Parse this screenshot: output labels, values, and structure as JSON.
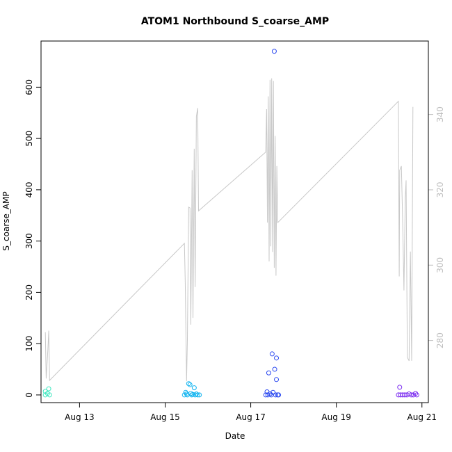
{
  "chart_data": {
    "type": "scatter",
    "title": "ATOM1 Northbound S_coarse_AMP",
    "xlabel": "Date",
    "ylabel": "S_coarse_AMP",
    "x_ticks": [
      "Aug 13",
      "Aug 15",
      "Aug 17",
      "Aug 19",
      "Aug 21"
    ],
    "y_ticks": [
      0,
      100,
      200,
      300,
      400,
      500,
      600
    ],
    "y2_ticks": [
      280,
      300,
      320,
      340
    ],
    "ylim": [
      -15,
      690
    ],
    "y2lim": [
      263.5,
      359.5
    ],
    "xlim_days": [
      12.1,
      21.15
    ],
    "grid": false,
    "legend": "none",
    "colors": {
      "line": "#c8c8c8",
      "right_axis": "#bdbdbd"
    },
    "series": [
      {
        "color": "#3ee8c0",
        "points": [
          [
            12.2,
            0
          ],
          [
            12.2,
            7
          ],
          [
            12.25,
            3
          ],
          [
            12.28,
            12
          ],
          [
            12.3,
            0
          ]
        ]
      },
      {
        "color": "#12b4f0",
        "points": [
          [
            15.45,
            0
          ],
          [
            15.48,
            5
          ],
          [
            15.5,
            2
          ],
          [
            15.52,
            0
          ],
          [
            15.55,
            22
          ],
          [
            15.58,
            20
          ],
          [
            15.6,
            3
          ],
          [
            15.62,
            0
          ],
          [
            15.65,
            1
          ],
          [
            15.68,
            14
          ],
          [
            15.7,
            0
          ],
          [
            15.73,
            2
          ],
          [
            15.76,
            0
          ],
          [
            15.8,
            0
          ]
        ]
      },
      {
        "color": "#2a48f0",
        "points": [
          [
            17.35,
            0
          ],
          [
            17.38,
            6
          ],
          [
            17.4,
            0
          ],
          [
            17.42,
            43
          ],
          [
            17.45,
            2
          ],
          [
            17.48,
            0
          ],
          [
            17.5,
            80
          ],
          [
            17.52,
            5
          ],
          [
            17.55,
            670
          ],
          [
            17.56,
            50
          ],
          [
            17.58,
            0
          ],
          [
            17.6,
            72
          ],
          [
            17.6,
            30
          ],
          [
            17.63,
            0
          ],
          [
            17.65,
            0
          ]
        ]
      },
      {
        "color": "#7a2af0",
        "points": [
          [
            20.45,
            0
          ],
          [
            20.48,
            15
          ],
          [
            20.5,
            0
          ],
          [
            20.55,
            0
          ],
          [
            20.6,
            0
          ],
          [
            20.65,
            0
          ],
          [
            20.7,
            2
          ],
          [
            20.75,
            0
          ],
          [
            20.8,
            0
          ],
          [
            20.85,
            3
          ],
          [
            20.88,
            0
          ]
        ]
      }
    ],
    "line_series": {
      "axis": "right",
      "points": [
        [
          12.2,
          282.2
        ],
        [
          12.22,
          269.9
        ],
        [
          12.26,
          277.3
        ],
        [
          12.28,
          282.6
        ],
        [
          12.3,
          269.4
        ],
        [
          15.45,
          305.8
        ],
        [
          15.47,
          295.4
        ],
        [
          15.5,
          269.2
        ],
        [
          15.52,
          280.3
        ],
        [
          15.55,
          315.4
        ],
        [
          15.58,
          315.2
        ],
        [
          15.6,
          284.2
        ],
        [
          15.63,
          325.2
        ],
        [
          15.65,
          286.0
        ],
        [
          15.68,
          330.9
        ],
        [
          15.7,
          294.2
        ],
        [
          15.73,
          339.5
        ],
        [
          15.76,
          341.7
        ],
        [
          15.78,
          314.4
        ],
        [
          17.35,
          330.0
        ],
        [
          17.37,
          341.4
        ],
        [
          17.39,
          311.3
        ],
        [
          17.41,
          344.8
        ],
        [
          17.43,
          301.0
        ],
        [
          17.45,
          349.2
        ],
        [
          17.47,
          305.0
        ],
        [
          17.49,
          349.6
        ],
        [
          17.51,
          303.5
        ],
        [
          17.53,
          348.9
        ],
        [
          17.55,
          299.3
        ],
        [
          17.57,
          334.3
        ],
        [
          17.59,
          297.2
        ],
        [
          17.61,
          326.3
        ],
        [
          17.63,
          311.3
        ],
        [
          20.45,
          343.5
        ],
        [
          20.47,
          297.0
        ],
        [
          20.48,
          325.2
        ],
        [
          20.52,
          326.3
        ],
        [
          20.55,
          311.3
        ],
        [
          20.58,
          293.3
        ],
        [
          20.61,
          318.0
        ],
        [
          20.63,
          322.5
        ],
        [
          20.66,
          275.5
        ],
        [
          20.7,
          274.6
        ],
        [
          20.73,
          303.6
        ],
        [
          20.76,
          274.6
        ],
        [
          20.79,
          342.0
        ]
      ]
    }
  }
}
